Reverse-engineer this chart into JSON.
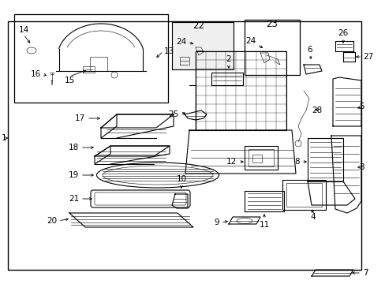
{
  "bg_color": "#ffffff",
  "lw_main": 0.8,
  "lw_thin": 0.4,
  "fontsize_label": 7.5,
  "fontsize_small": 6.0,
  "arrow_lw": 0.6,
  "arrow_ms": 5
}
